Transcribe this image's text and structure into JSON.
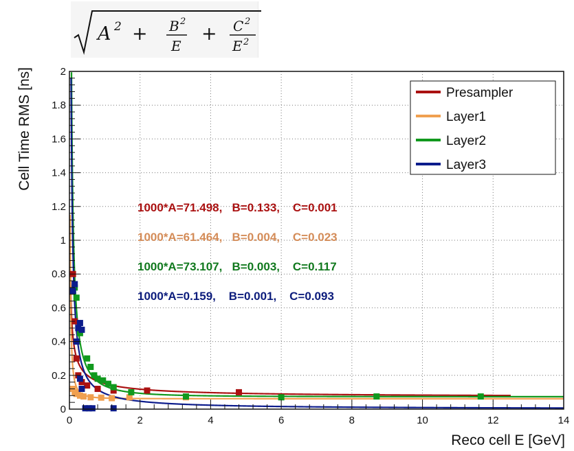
{
  "formula": {
    "A": "A",
    "A_exp": "2",
    "plus1": "+",
    "B": "B",
    "B_exp": "2",
    "E1": "E",
    "plus2": "+",
    "C": "C",
    "C_exp": "2",
    "E2": "E",
    "E2_exp": "2"
  },
  "chart_data": {
    "type": "scatter",
    "title": "",
    "xlabel": "Reco cell E [GeV]",
    "ylabel": "Cell Time RMS [ns]",
    "xlim": [
      0,
      14
    ],
    "ylim": [
      0,
      2
    ],
    "x_ticks": [
      "0",
      "2",
      "4",
      "6",
      "8",
      "10",
      "12",
      "14"
    ],
    "y_ticks": [
      "0",
      "0.2",
      "0.4",
      "0.6",
      "0.8",
      "1",
      "1.2",
      "1.4",
      "1.6",
      "1.8",
      "2"
    ],
    "grid": true,
    "legend_position": "top-right",
    "series": [
      {
        "name": "Presampler",
        "color": "#aa1111",
        "points": [
          [
            0.1,
            0.8
          ],
          [
            0.15,
            0.52
          ],
          [
            0.2,
            0.3
          ],
          [
            0.25,
            0.2
          ],
          [
            0.35,
            0.16
          ],
          [
            0.5,
            0.14
          ],
          [
            0.8,
            0.12
          ],
          [
            1.25,
            0.11
          ],
          [
            2.2,
            0.11
          ],
          [
            4.8,
            0.1
          ]
        ],
        "fit": {
          "A": 71.498,
          "B": 0.133,
          "C": 0.001,
          "x_end": 12.5
        }
      },
      {
        "name": "Layer1",
        "color": "#f0a050",
        "points": [
          [
            0.1,
            0.12
          ],
          [
            0.15,
            0.1
          ],
          [
            0.2,
            0.09
          ],
          [
            0.3,
            0.08
          ],
          [
            0.4,
            0.075
          ],
          [
            0.6,
            0.07
          ],
          [
            0.9,
            0.068
          ],
          [
            1.2,
            0.065
          ],
          [
            1.7,
            0.07
          ],
          [
            3.3,
            0.07
          ]
        ],
        "fit": {
          "A": 61.464,
          "B": 0.004,
          "C": 0.023,
          "x_end": 14
        }
      },
      {
        "name": "Layer2",
        "color": "#11991e",
        "points": [
          [
            0.15,
            0.72
          ],
          [
            0.2,
            0.66
          ],
          [
            0.3,
            0.45
          ],
          [
            0.5,
            0.3
          ],
          [
            0.6,
            0.25
          ],
          [
            0.7,
            0.2
          ],
          [
            0.8,
            0.18
          ],
          [
            0.95,
            0.17
          ],
          [
            1.1,
            0.15
          ],
          [
            1.25,
            0.13
          ],
          [
            1.75,
            0.1
          ],
          [
            3.3,
            0.075
          ],
          [
            6.0,
            0.07
          ],
          [
            8.7,
            0.075
          ],
          [
            11.65,
            0.075
          ]
        ],
        "fit": {
          "A": 73.107,
          "B": 0.003,
          "C": 0.117,
          "x_end": 14
        }
      },
      {
        "name": "Layer3",
        "color": "#0c1c8c",
        "points": [
          [
            0.1,
            0.7
          ],
          [
            0.15,
            0.74
          ],
          [
            0.2,
            0.4
          ],
          [
            0.25,
            0.48
          ],
          [
            0.3,
            0.51
          ],
          [
            0.35,
            0.47
          ],
          [
            0.3,
            0.18
          ],
          [
            0.35,
            0.12
          ],
          [
            0.45,
            0.005
          ],
          [
            0.55,
            0.005
          ],
          [
            0.65,
            0.005
          ],
          [
            1.25,
            0.005
          ]
        ],
        "fit": {
          "A": 0.159,
          "B": 0.001,
          "C": 0.093,
          "x_end": 14
        }
      }
    ],
    "annotations": [
      {
        "text": "1000*A=71.498,   B=0.133,    C=0.001",
        "series": "Presampler",
        "color": "#aa1111"
      },
      {
        "text": "1000*A=61.464,   B=0.004,    C=0.023",
        "series": "Layer1",
        "color": "#d48c58"
      },
      {
        "text": "1000*A=73.107,   B=0.003,    C=0.117",
        "series": "Layer2",
        "color": "#11791e"
      },
      {
        "text": "1000*A=0.159,    B=0.001,    C=0.093",
        "series": "Layer3",
        "color": "#0c1c7c"
      }
    ]
  }
}
